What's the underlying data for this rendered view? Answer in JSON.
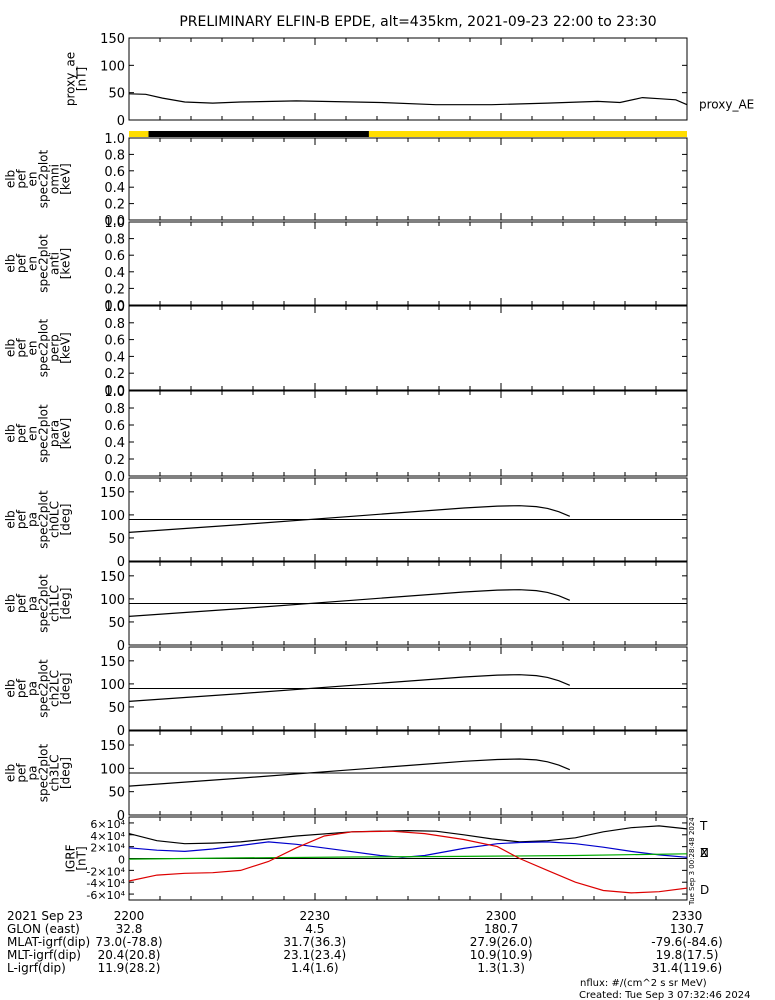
{
  "title": "PRELIMINARY ELFIN-B EPDE, alt=435km, 2021-09-23 22:00 to 23:30",
  "chart_data": [
    {
      "type": "line",
      "id": "proxy_ae",
      "ylabel_lines": [
        "proxy_ae",
        "[nT]"
      ],
      "ylim": [
        0,
        150
      ],
      "yticks": [
        "0",
        "50",
        "100",
        "150"
      ],
      "series": [
        {
          "name": "proxy_AE",
          "color": "#000000",
          "x": [
            0,
            3,
            6,
            10,
            15,
            20,
            30,
            45,
            55,
            65,
            75,
            84,
            88,
            92,
            95,
            98,
            100
          ],
          "y": [
            48,
            47,
            40,
            33,
            31,
            33,
            35,
            32,
            28,
            28,
            31,
            34,
            32,
            41,
            39,
            37,
            28
          ]
        }
      ]
    },
    {
      "type": "spectrogram",
      "id": "omni",
      "ylabel_lines": [
        "elb",
        "pef",
        "en",
        "spec2plot",
        "omni",
        "[keV]"
      ],
      "ylim": [
        0,
        1
      ],
      "yticks": [
        "0.0",
        "0.2",
        "0.4",
        "0.6",
        "0.8",
        "1.0"
      ]
    },
    {
      "type": "spectrogram",
      "id": "anti",
      "ylabel_lines": [
        "elb",
        "pef",
        "en",
        "spec2plot",
        "anti",
        "[keV]"
      ],
      "ylim": [
        0,
        1
      ],
      "yticks": [
        "0.0",
        "0.2",
        "0.4",
        "0.6",
        "0.8",
        "1.0"
      ]
    },
    {
      "type": "spectrogram",
      "id": "perp",
      "ylabel_lines": [
        "elb",
        "pef",
        "en",
        "spec2plot",
        "perp",
        "[keV]"
      ],
      "ylim": [
        0,
        1
      ],
      "yticks": [
        "0.0",
        "0.2",
        "0.4",
        "0.6",
        "0.8",
        "1.0"
      ]
    },
    {
      "type": "spectrogram",
      "id": "para",
      "ylabel_lines": [
        "elb",
        "pef",
        "en",
        "spec2plot",
        "para",
        "[keV]"
      ],
      "ylim": [
        0,
        1
      ],
      "yticks": [
        "0.0",
        "0.2",
        "0.4",
        "0.6",
        "0.8",
        "1.0"
      ]
    },
    {
      "type": "line",
      "id": "ch0LC",
      "ylabel_lines": [
        "elb",
        "pef",
        "pa",
        "spec2plot",
        "ch0LC",
        "[deg]"
      ],
      "ylim": [
        0,
        180
      ],
      "yticks": [
        "0",
        "50",
        "100",
        "150"
      ],
      "hline": 90,
      "series": [
        {
          "name": "",
          "color": "#000000",
          "x": [
            0,
            20,
            40,
            50,
            60,
            66,
            70,
            73,
            75,
            77,
            79
          ],
          "y": [
            62,
            79,
            97,
            106,
            115,
            119,
            120,
            118,
            114,
            107,
            97
          ]
        }
      ]
    },
    {
      "type": "line",
      "id": "ch1LC",
      "ylabel_lines": [
        "elb",
        "pef",
        "pa",
        "spec2plot",
        "ch1LC",
        "[deg]"
      ],
      "ylim": [
        0,
        180
      ],
      "yticks": [
        "0",
        "50",
        "100",
        "150"
      ],
      "hline": 90,
      "series": [
        {
          "name": "",
          "color": "#000000",
          "x": [
            0,
            20,
            40,
            50,
            60,
            66,
            70,
            73,
            75,
            77,
            79
          ],
          "y": [
            62,
            79,
            97,
            106,
            115,
            119,
            120,
            118,
            114,
            107,
            97
          ]
        }
      ]
    },
    {
      "type": "line",
      "id": "ch2LC",
      "ylabel_lines": [
        "elb",
        "pef",
        "pa",
        "spec2plot",
        "ch2LC",
        "[deg]"
      ],
      "ylim": [
        0,
        180
      ],
      "yticks": [
        "0",
        "50",
        "100",
        "150"
      ],
      "hline": 90,
      "series": [
        {
          "name": "",
          "color": "#000000",
          "x": [
            0,
            20,
            40,
            50,
            60,
            66,
            70,
            73,
            75,
            77,
            79
          ],
          "y": [
            62,
            79,
            97,
            106,
            115,
            119,
            120,
            118,
            114,
            107,
            97
          ]
        }
      ]
    },
    {
      "type": "line",
      "id": "ch3LC",
      "ylabel_lines": [
        "elb",
        "pef",
        "pa",
        "spec2plot",
        "ch3LC",
        "[deg]"
      ],
      "ylim": [
        0,
        180
      ],
      "yticks": [
        "0",
        "50",
        "100",
        "150"
      ],
      "hline": 90,
      "series": [
        {
          "name": "",
          "color": "#000000",
          "x": [
            0,
            20,
            40,
            50,
            60,
            66,
            70,
            73,
            75,
            77,
            79
          ],
          "y": [
            62,
            79,
            97,
            106,
            115,
            119,
            120,
            118,
            114,
            107,
            97
          ]
        }
      ]
    },
    {
      "type": "line",
      "id": "igrf",
      "ylabel_lines": [
        "IGRF",
        "[nT]"
      ],
      "ylim": [
        -70000,
        70000
      ],
      "yticks": [
        "-6×10⁴",
        "-4×10⁴",
        "-2×10⁴",
        "0",
        "2×10⁴",
        "4×10⁴",
        "6×10⁴"
      ],
      "hline": 0,
      "series": [
        {
          "name": "T",
          "color": "#000000",
          "x": [
            0,
            5,
            10,
            15,
            20,
            30,
            40,
            50,
            55,
            60,
            65,
            70,
            75,
            80,
            85,
            90,
            95,
            100
          ],
          "y": [
            42000,
            30000,
            25000,
            26000,
            28000,
            38000,
            45000,
            47000,
            46000,
            40000,
            33000,
            28000,
            30000,
            35000,
            45000,
            52000,
            55000,
            50000
          ]
        },
        {
          "name": "N",
          "color": "#0000cc",
          "x": [
            0,
            5,
            10,
            15,
            20,
            25,
            30,
            38,
            45,
            49,
            53,
            60,
            66,
            70,
            75,
            80,
            85,
            90,
            95,
            100
          ],
          "y": [
            18000,
            14000,
            12000,
            16000,
            22000,
            28000,
            24000,
            14000,
            5000,
            2000,
            5000,
            17000,
            25000,
            27000,
            28000,
            25000,
            19000,
            12000,
            6000,
            2000
          ]
        },
        {
          "name": "Z",
          "color": "#00aa00",
          "x": [
            0,
            20,
            40,
            60,
            80,
            100
          ],
          "y": [
            -1000,
            1000,
            2500,
            3500,
            5000,
            8000
          ]
        },
        {
          "name": "D",
          "color": "#dd0000",
          "x": [
            0,
            5,
            10,
            15,
            20,
            25,
            30,
            35,
            40,
            47,
            53,
            60,
            66,
            70,
            75,
            80,
            85,
            90,
            95,
            100
          ],
          "y": [
            -38000,
            -28000,
            -25000,
            -24000,
            -20000,
            -5000,
            18000,
            38000,
            45000,
            46000,
            42000,
            32000,
            20000,
            0,
            -20000,
            -40000,
            -54000,
            -58000,
            -56000,
            -50000
          ]
        }
      ]
    }
  ],
  "time_axis": {
    "row_labels": [
      "2021 Sep 23",
      "GLON (east)",
      "MLAT-igrf(dip)",
      "MLT-igrf(dip)",
      "L-igrf(dip)"
    ],
    "ticks": [
      {
        "x": 0,
        "rows": [
          "2200",
          "32.8",
          "73.0(-78.8)",
          "20.4(20.8)",
          "11.9(28.2)"
        ]
      },
      {
        "x": 33.3,
        "rows": [
          "2230",
          "4.5",
          "31.7(36.3)",
          "23.1(23.4)",
          "1.4(1.6)"
        ]
      },
      {
        "x": 66.7,
        "rows": [
          "2300",
          "180.7",
          "27.9(26.0)",
          "10.9(10.9)",
          "1.3(1.3)"
        ]
      },
      {
        "x": 100,
        "rows": [
          "2330",
          "130.7",
          "-79.6(-84.6)",
          "19.8(17.5)",
          "31.4(119.6)"
        ]
      }
    ]
  },
  "sunlight_bar": [
    {
      "from": 0,
      "to": 3.5,
      "color": "#ffdd00"
    },
    {
      "from": 3.5,
      "to": 43,
      "color": "#000000"
    },
    {
      "from": 43,
      "to": 100,
      "color": "#ffdd00"
    }
  ],
  "footer": {
    "nflux": "nflux: #/(cm^2 s sr MeV)",
    "created": "Created: Tue Sep  3 07:32:46 2024",
    "side_stamp": "Tue Sep  3 00:28:48 2024"
  }
}
